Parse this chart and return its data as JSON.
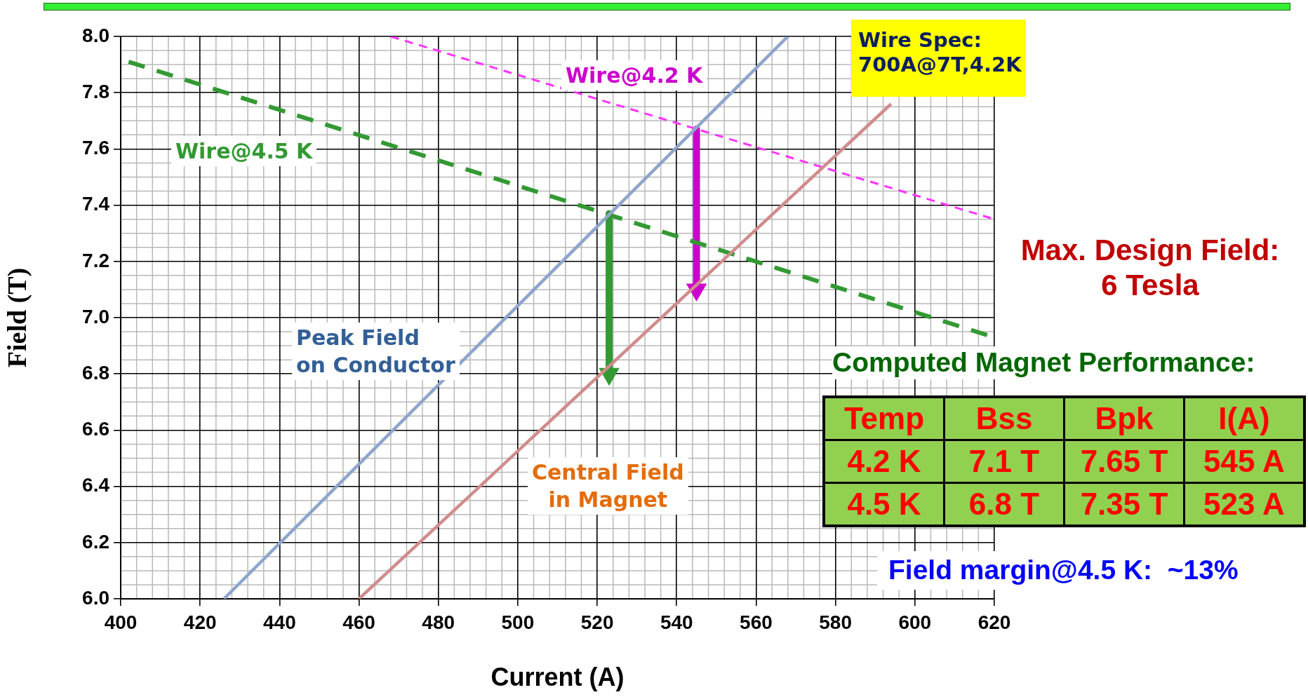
{
  "chart_data": {
    "type": "line",
    "xlabel": "Current (A)",
    "ylabel": "Field (T)",
    "xlim": [
      400,
      620
    ],
    "xticks": [
      400,
      420,
      440,
      460,
      480,
      500,
      520,
      540,
      560,
      580,
      600,
      620
    ],
    "ylim": [
      6.0,
      8.0
    ],
    "yticks": [
      {
        "value": 6.0,
        "label": "6.0"
      },
      6.2,
      6.4,
      6.6,
      6.8,
      {
        "value": 7.0,
        "label": "7.0"
      },
      7.2,
      7.4,
      7.6,
      7.8,
      {
        "value": 8.0,
        "label": "8.0"
      }
    ],
    "grid": true,
    "legend": false,
    "marker": "none",
    "series": [
      {
        "name": "Peak Field\non Conductor",
        "color": "#8ea5cc",
        "x": [
          426,
          568
        ],
        "values": [
          6.0,
          8.0
        ]
      },
      {
        "name": "Central Field\nin Magnet",
        "color": "#cf8c8c",
        "x": [
          460,
          594
        ],
        "values": [
          6.0,
          7.76
        ]
      },
      {
        "name": "Wire@4.2 K",
        "color": "#ff33ff",
        "line_style": "dashed",
        "x": [
          468,
          620
        ],
        "values": [
          8.0,
          7.35
        ]
      },
      {
        "name": "Wire@4.5 K",
        "color": "#339933",
        "line_style": "dashed",
        "x": [
          402,
          620
        ],
        "values": [
          7.91,
          6.93
        ]
      },
      {
        "color": "#339933",
        "marker": "triangle",
        "x": [
          523,
          523
        ],
        "values": [
          7.37,
          6.8
        ]
      },
      {
        "color": "#cc00cc",
        "marker": "triangle",
        "x": [
          545,
          545
        ],
        "values": [
          7.67,
          7.1
        ]
      }
    ],
    "annotations": [
      "Wire Spec:\n700A@7T,4.2K",
      "Max. Design Field:\n6 Tesla",
      "Computed Magnet Performance:",
      "Temp",
      "Bss",
      "Bpk",
      "I(A)",
      "4.2 K",
      "7.1 T",
      "7.65 T",
      "545 A",
      "4.5 K",
      "6.8 T",
      "7.35 T",
      "523 A",
      "Field margin@4.5 K:  ~13%"
    ]
  }
}
